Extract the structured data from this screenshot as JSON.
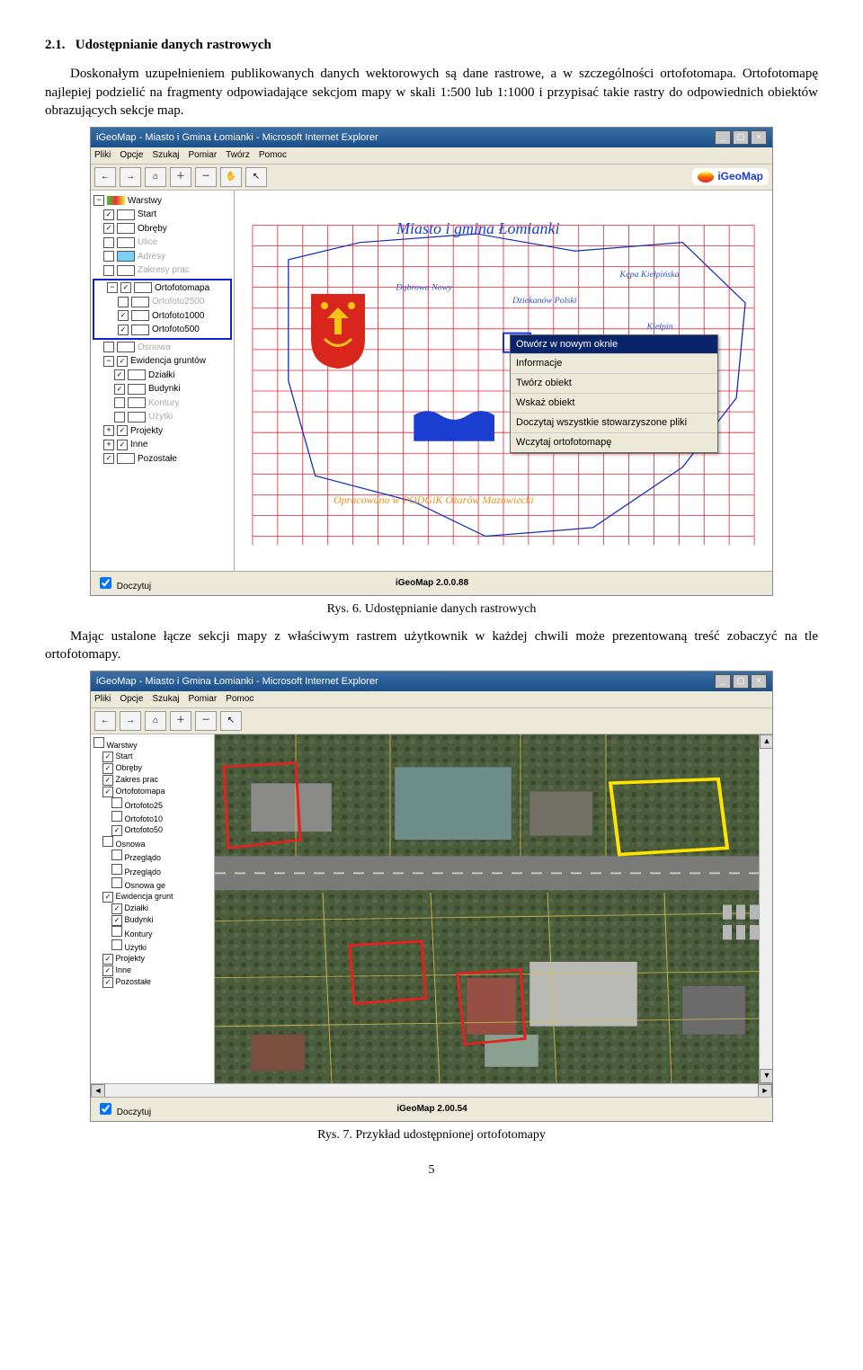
{
  "section": {
    "num": "2.1.",
    "title": "Udostępnianie danych rastrowych"
  },
  "para1": "Doskonałym uzupełnieniem publikowanych danych wektorowych są dane rastrowe, a w szczególności ortofotomapa. Ortofotomapę najlepiej podzielić na fragmenty odpowiadające sekcjom mapy w skali 1:500 lub 1:1000 i przypisać takie rastry do odpowiednich obiektów obrazujących sekcje map.",
  "fig1": {
    "caption": "Rys. 6. Udostępnianie danych rastrowych"
  },
  "para2": "Mając ustalone łącze sekcji mapy z właściwym rastrem użytkownik w każdej chwili może prezentowaną treść zobaczyć na tle ortofotomapy.",
  "fig2": {
    "caption": "Rys. 7. Przykład udostępnionej ortofotomapy"
  },
  "pagenum": "5",
  "shot1": {
    "title": "iGeoMap - Miasto i Gmina Łomianki - Microsoft Internet Explorer",
    "menus": [
      "Pliki",
      "Opcje",
      "Szukaj",
      "Pomiar",
      "Twórz",
      "Pomoc"
    ],
    "brand": "iGeoMap",
    "layers_root": "Warstwy",
    "layers": [
      {
        "name": "Start",
        "ind": 1,
        "chk": true,
        "sw": "#fff"
      },
      {
        "name": "Obręby",
        "ind": 1,
        "chk": true,
        "sw": "#fff"
      },
      {
        "name": "Ulice",
        "ind": 1,
        "chk": false,
        "grey": true,
        "sw": "#fff"
      },
      {
        "name": "Adresy",
        "ind": 1,
        "chk": false,
        "grey": true,
        "sw": "#79d0f7",
        "env": true
      },
      {
        "name": "Zakresy prac",
        "ind": 1,
        "chk": false,
        "grey": true,
        "sw": "#fff"
      }
    ],
    "ortoGroup": {
      "name": "Ortofotomapa",
      "items": [
        {
          "name": "Ortofoto2500",
          "grey": true
        },
        {
          "name": "Ortofoto1000"
        },
        {
          "name": "Ortofoto500"
        }
      ]
    },
    "osnowa": "Osnowa",
    "ewid": {
      "name": "Ewidencja gruntów",
      "items": [
        "Działki",
        "Budynki",
        "Kontury",
        "Użytki"
      ]
    },
    "others": [
      "Projekty",
      "Inne",
      "Pozostałe"
    ],
    "mapTitle": "Miasto i gmina Łomianki",
    "mapLabels": [
      "Kępa Kiełpińska",
      "Kiełpin",
      "Dziekanów Polski",
      "Dąbrowa Leśna"
    ],
    "mapOrg": "Opracowano w PODGiK Ożarów Mazowiecki",
    "ctx": {
      "hdr": "Otwórz w nowym oknie",
      "items": [
        "Informacje",
        "Twórz obiekt",
        "Wskaż obiekt",
        "Doczytaj wszystkie stowarzyszone pliki",
        "Wczytaj ortofotomapę"
      ]
    },
    "status_left": "Doczytuj",
    "status_center": "iGeoMap 2.0.0.88"
  },
  "shot2": {
    "title": "iGeoMap - Miasto i Gmina Łomianki - Microsoft Internet Explorer",
    "menus": [
      "Pliki",
      "Opcje",
      "Szukaj",
      "Pomiar",
      "",
      "Pomoc"
    ],
    "status_left": "Doczytuj",
    "status_center": "iGeoMap 2.00.54",
    "tree": [
      "Warstwy",
      "Start",
      "Obręby",
      "Zakres prac",
      "Ortofotomapa",
      "Ortofoto25",
      "Ortofoto10",
      "Ortofoto50",
      "Osnowa",
      "Przeglądo",
      "Przeglądo",
      "Osnowa ge",
      "Ewidencja grunt",
      "Działki",
      "Budynki",
      "Kontury",
      "Użytki",
      "Projekty",
      "Inne",
      "Pozostałe"
    ],
    "parcels": {
      "yellow": {
        "stroke": "#ffef00"
      },
      "red": {
        "stroke": "#e62020"
      },
      "thin": {
        "stroke": "#f0d060"
      }
    }
  }
}
